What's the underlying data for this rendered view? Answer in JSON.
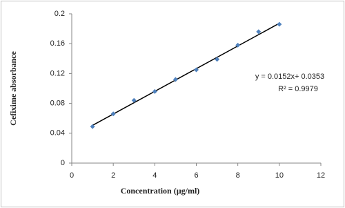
{
  "chart_data": {
    "type": "scatter",
    "x_label": "Concentration (µg/ml)",
    "y_label": "Cefixime absorbance",
    "x": [
      1,
      2,
      3,
      4,
      5,
      6,
      7,
      8,
      9,
      10
    ],
    "values": [
      0.049,
      0.066,
      0.084,
      0.096,
      0.112,
      0.125,
      0.139,
      0.158,
      0.176,
      0.186
    ],
    "color": "#4f81bd",
    "xlim": [
      0,
      12
    ],
    "xticks": [
      0,
      2,
      4,
      6,
      8,
      10,
      12
    ],
    "ylim": [
      0,
      0.2
    ],
    "yticks": [
      0,
      0.04,
      0.08,
      0.12,
      0.16,
      0.2
    ],
    "grid": false,
    "trendline": {
      "equation": "y = 0.0152x+ 0.0353",
      "r_squared": "R² = 0.9979",
      "slope": 0.0152,
      "intercept": 0.0353,
      "color": "#000000"
    }
  }
}
